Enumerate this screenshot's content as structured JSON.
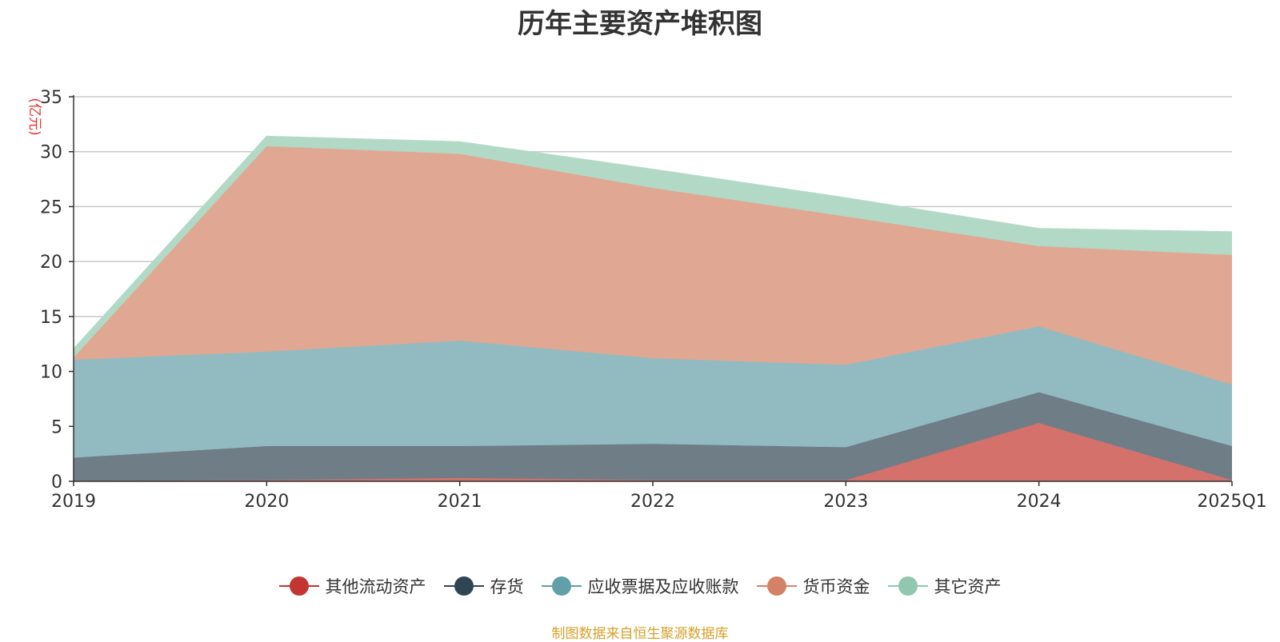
{
  "source_note": "制图数据来自恒生聚源数据库",
  "chart_data": {
    "type": "area",
    "stacked": true,
    "title": "历年主要资产堆积图",
    "ylabel": "(亿元)",
    "xlabel": "",
    "ylim": [
      0,
      35
    ],
    "yticks": [
      0,
      5,
      10,
      15,
      20,
      25,
      30,
      35
    ],
    "grid": true,
    "legend_position": "bottom",
    "categories": [
      "2019",
      "2020",
      "2021",
      "2022",
      "2023",
      "2024",
      "2025Q1"
    ],
    "series": [
      {
        "name": "其他流动资产",
        "color": "#c23531",
        "fill": "#d5716b",
        "values": [
          0.05,
          0.1,
          0.3,
          0.1,
          0.1,
          5.3,
          0.1
        ]
      },
      {
        "name": "存货",
        "color": "#2f4554",
        "fill": "#6f7d87",
        "values": [
          2.1,
          3.1,
          2.9,
          3.3,
          3.0,
          2.8,
          3.1
        ]
      },
      {
        "name": "应收票据及应收账款",
        "color": "#61a0a8",
        "fill": "#92bac1",
        "values": [
          8.9,
          8.6,
          9.6,
          7.8,
          7.5,
          6.0,
          5.6
        ]
      },
      {
        "name": "货币资金",
        "color": "#d48265",
        "fill": "#e0a892",
        "values": [
          0.2,
          18.7,
          17.0,
          15.5,
          13.5,
          7.3,
          11.8
        ]
      },
      {
        "name": "其它资产",
        "color": "#91c7ae",
        "fill": "#b1d9c6",
        "values": [
          0.8,
          0.9,
          1.1,
          1.7,
          1.7,
          1.6,
          2.1
        ]
      }
    ]
  }
}
